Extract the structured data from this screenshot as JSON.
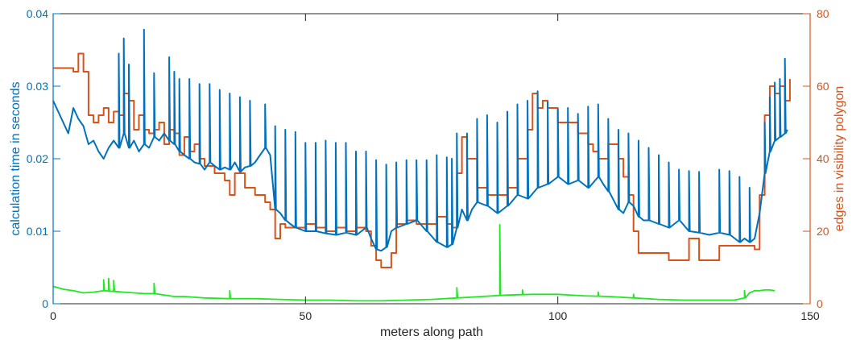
{
  "chart_data": {
    "type": "line",
    "xlabel": "meters along path",
    "ylabel_left": "calculation time in seconds",
    "ylabel_right": "edges in visibility polygon",
    "xlim": [
      0,
      150
    ],
    "ylim_left": [
      0,
      0.04
    ],
    "ylim_right": [
      0,
      80
    ],
    "x_ticks": [
      0,
      50,
      100,
      150
    ],
    "x_tick_labels": [
      "0",
      "50",
      "100",
      "150"
    ],
    "y_left_ticks": [
      0,
      0.01,
      0.02,
      0.03,
      0.04
    ],
    "y_left_tick_labels": [
      "0",
      "0.01",
      "0.02",
      "0.03",
      "0.04"
    ],
    "y_right_ticks": [
      0,
      20,
      40,
      60,
      80
    ],
    "y_right_tick_labels": [
      "0",
      "20",
      "40",
      "60",
      "80"
    ],
    "grid": false,
    "colors": {
      "left_axis": "#0072BD",
      "right_axis": "#D95319",
      "series_blue": "#0072BD",
      "series_orange": "#D95319",
      "series_green": "#22E822"
    },
    "series": [
      {
        "axis": "left",
        "color": "#0072BD",
        "x": [
          0,
          3,
          4,
          5,
          6,
          7,
          8,
          9,
          10,
          11,
          12,
          13,
          14,
          15,
          16,
          17,
          18,
          19,
          20,
          21,
          22,
          23,
          24,
          25,
          26,
          27,
          28,
          29,
          30,
          31,
          32,
          33,
          34,
          35,
          36,
          37,
          38,
          39,
          40,
          41,
          42,
          43,
          44,
          45,
          46,
          47,
          48,
          50,
          52,
          54,
          56,
          58,
          60,
          62,
          63,
          64,
          65,
          66,
          67,
          68,
          70,
          72,
          74,
          76,
          78,
          79,
          80,
          81,
          82,
          83,
          84,
          86,
          88,
          90,
          92,
          94,
          96,
          98,
          100,
          102,
          104,
          106,
          108,
          109,
          110,
          112,
          113,
          114,
          115,
          116,
          117,
          118,
          120,
          122,
          124,
          126,
          128,
          130,
          132,
          134,
          136,
          137,
          138,
          139,
          140,
          141,
          142,
          143,
          144,
          145,
          145.5
        ],
        "y": [
          0.028,
          0.0235,
          0.027,
          0.0255,
          0.0245,
          0.022,
          0.0225,
          0.021,
          0.02,
          0.0215,
          0.0225,
          0.0215,
          0.0235,
          0.0215,
          0.0225,
          0.021,
          0.022,
          0.0215,
          0.023,
          0.0225,
          0.0235,
          0.0225,
          0.022,
          0.021,
          0.0205,
          0.02,
          0.0195,
          0.0193,
          0.0185,
          0.0195,
          0.019,
          0.0185,
          0.0188,
          0.0185,
          0.0195,
          0.0182,
          0.0188,
          0.019,
          0.0195,
          0.0205,
          0.0215,
          0.0205,
          0.013,
          0.0125,
          0.0115,
          0.011,
          0.0105,
          0.01,
          0.01,
          0.0097,
          0.0095,
          0.0098,
          0.0095,
          0.0105,
          0.009,
          0.0075,
          0.0073,
          0.0078,
          0.01,
          0.0105,
          0.011,
          0.0115,
          0.01,
          0.0085,
          0.0078,
          0.0082,
          0.0105,
          0.013,
          0.0115,
          0.013,
          0.014,
          0.0135,
          0.0125,
          0.0135,
          0.015,
          0.0145,
          0.016,
          0.0165,
          0.0175,
          0.0165,
          0.017,
          0.016,
          0.0175,
          0.0165,
          0.0155,
          0.013,
          0.0125,
          0.014,
          0.0135,
          0.012,
          0.0115,
          0.0115,
          0.011,
          0.0105,
          0.0115,
          0.01,
          0.0098,
          0.0095,
          0.0098,
          0.0095,
          0.0085,
          0.009,
          0.0085,
          0.009,
          0.0125,
          0.018,
          0.021,
          0.0225,
          0.023,
          0.0235,
          0.024
        ],
        "spikes": [
          [
            13,
            0.0345
          ],
          [
            14,
            0.0366
          ],
          [
            15,
            0.033
          ],
          [
            18,
            0.0378
          ],
          [
            20,
            0.0318
          ],
          [
            23,
            0.034
          ],
          [
            24,
            0.032
          ],
          [
            25,
            0.031
          ],
          [
            27,
            0.031
          ],
          [
            29,
            0.0303
          ],
          [
            31,
            0.0303
          ],
          [
            33,
            0.0295
          ],
          [
            35,
            0.029
          ],
          [
            37,
            0.0285
          ],
          [
            39,
            0.028
          ],
          [
            42,
            0.0275
          ],
          [
            44,
            0.0245
          ],
          [
            46,
            0.024
          ],
          [
            48,
            0.0237
          ],
          [
            50,
            0.0222
          ],
          [
            52,
            0.0222
          ],
          [
            54,
            0.0225
          ],
          [
            56,
            0.0222
          ],
          [
            58,
            0.0222
          ],
          [
            60,
            0.021
          ],
          [
            62,
            0.021
          ],
          [
            64,
            0.0198
          ],
          [
            66,
            0.0192
          ],
          [
            68,
            0.0195
          ],
          [
            70,
            0.0198
          ],
          [
            72,
            0.0198
          ],
          [
            74,
            0.0198
          ],
          [
            76,
            0.0205
          ],
          [
            78,
            0.0202
          ],
          [
            79,
            0.02
          ],
          [
            80,
            0.0235
          ],
          [
            82,
            0.0235
          ],
          [
            84,
            0.0255
          ],
          [
            86,
            0.026
          ],
          [
            88,
            0.025
          ],
          [
            90,
            0.0265
          ],
          [
            92,
            0.0275
          ],
          [
            94,
            0.028
          ],
          [
            96,
            0.0293
          ],
          [
            98,
            0.0278
          ],
          [
            100,
            0.0268
          ],
          [
            102,
            0.027
          ],
          [
            104,
            0.0262
          ],
          [
            106,
            0.0272
          ],
          [
            108,
            0.0275
          ],
          [
            110,
            0.0255
          ],
          [
            112,
            0.024
          ],
          [
            114,
            0.0235
          ],
          [
            116,
            0.0225
          ],
          [
            118,
            0.0215
          ],
          [
            120,
            0.0205
          ],
          [
            122,
            0.0195
          ],
          [
            124,
            0.0185
          ],
          [
            126,
            0.0183
          ],
          [
            128,
            0.0182
          ],
          [
            132,
            0.0185
          ],
          [
            134,
            0.0183
          ],
          [
            136,
            0.0175
          ],
          [
            138,
            0.016
          ],
          [
            141,
            0.025
          ],
          [
            142,
            0.0285
          ],
          [
            143,
            0.0305
          ],
          [
            144,
            0.031
          ],
          [
            145,
            0.0338
          ]
        ]
      },
      {
        "axis": "right",
        "color": "#D95319",
        "x": [
          0,
          4,
          5,
          6,
          7,
          8,
          9,
          10,
          11,
          12,
          13,
          14,
          15,
          16,
          17,
          18,
          19,
          20,
          21,
          22,
          23,
          24,
          25,
          26,
          27,
          28,
          29,
          30,
          32,
          34,
          35,
          36,
          38,
          40,
          42,
          43,
          44,
          45,
          46,
          48,
          50,
          52,
          54,
          56,
          58,
          60,
          62,
          63,
          64,
          65,
          66,
          67,
          68,
          70,
          72,
          74,
          76,
          78,
          79,
          80,
          81,
          82,
          84,
          86,
          88,
          90,
          92,
          94,
          95,
          96,
          97,
          98,
          100,
          102,
          104,
          106,
          107,
          108,
          110,
          112,
          113,
          114,
          115,
          116,
          118,
          120,
          122,
          124,
          125,
          126,
          128,
          130,
          132,
          134,
          136,
          138,
          139,
          140,
          141,
          142,
          143,
          144,
          145,
          146
        ],
        "y": [
          65,
          64,
          69,
          64,
          52,
          50,
          52,
          54,
          50,
          53,
          52,
          58,
          56,
          48,
          52,
          48,
          47,
          48,
          50,
          44,
          48,
          47,
          41,
          46,
          42,
          44,
          40,
          38,
          36,
          34,
          30,
          36,
          32,
          30,
          28,
          26,
          18,
          22,
          21,
          21,
          22,
          21,
          20,
          21,
          20,
          21,
          20,
          16,
          12,
          10,
          10,
          14,
          22,
          23,
          22,
          22,
          24,
          22,
          21,
          36,
          46,
          40,
          32,
          30,
          30,
          32,
          40,
          48,
          58,
          54,
          56,
          54,
          50,
          50,
          47,
          44,
          42,
          40,
          44,
          40,
          35,
          30,
          20,
          14,
          14,
          14,
          12,
          12,
          12,
          18,
          12,
          12,
          16,
          16,
          16,
          16,
          15,
          30,
          52,
          60,
          58,
          60,
          56,
          62
        ]
      },
      {
        "axis": "left",
        "color": "#22E822",
        "x": [
          0,
          2,
          4,
          6,
          8,
          10,
          12,
          14,
          16,
          18,
          20,
          22,
          24,
          26,
          28,
          30,
          35,
          40,
          45,
          50,
          55,
          60,
          65,
          70,
          75,
          80,
          85,
          90,
          95,
          100,
          105,
          110,
          115,
          120,
          125,
          130,
          135,
          137,
          138,
          139,
          140,
          141,
          142,
          143
        ],
        "y": [
          0.0024,
          0.002,
          0.0018,
          0.0015,
          0.0016,
          0.0018,
          0.0017,
          0.0016,
          0.0015,
          0.0014,
          0.0014,
          0.0012,
          0.001,
          0.001,
          0.0009,
          0.0008,
          0.0007,
          0.0007,
          0.0006,
          0.0005,
          0.0005,
          0.0004,
          0.0004,
          0.0005,
          0.0006,
          0.0008,
          0.001,
          0.0012,
          0.0013,
          0.0013,
          0.0011,
          0.001,
          0.0008,
          0.0006,
          0.0005,
          0.0005,
          0.0005,
          0.0008,
          0.0015,
          0.0018,
          0.0018,
          0.0019,
          0.0019,
          0.0018
        ],
        "spikes": [
          [
            10,
            0.0033
          ],
          [
            11,
            0.0035
          ],
          [
            12,
            0.0032
          ],
          [
            20,
            0.0028
          ],
          [
            35,
            0.0018
          ],
          [
            80,
            0.0022
          ],
          [
            88.5,
            0.0109
          ],
          [
            93,
            0.0019
          ],
          [
            108,
            0.0016
          ],
          [
            115,
            0.0013
          ],
          [
            137,
            0.0018
          ]
        ]
      }
    ]
  }
}
